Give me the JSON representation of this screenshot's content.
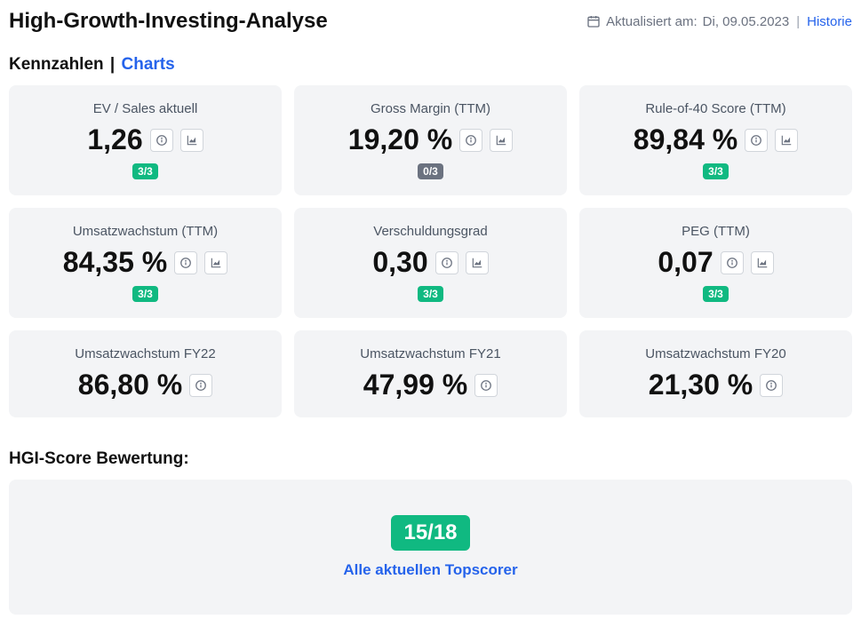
{
  "header": {
    "title": "High-Growth-Investing-Analyse",
    "updated_label": "Aktualisiert am:",
    "updated_date": "Di, 09.05.2023",
    "history_label": "Historie"
  },
  "tabs": {
    "metrics": "Kennzahlen",
    "charts": "Charts"
  },
  "metrics": [
    {
      "label": "EV / Sales aktuell",
      "value": "1,26",
      "score": "3/3",
      "score_color": "green",
      "has_chart": true
    },
    {
      "label": "Gross Margin (TTM)",
      "value": "19,20 %",
      "score": "0/3",
      "score_color": "gray",
      "has_chart": true
    },
    {
      "label": "Rule-of-40 Score (TTM)",
      "value": "89,84 %",
      "score": "3/3",
      "score_color": "green",
      "has_chart": true
    },
    {
      "label": "Umsatzwachstum (TTM)",
      "value": "84,35 %",
      "score": "3/3",
      "score_color": "green",
      "has_chart": true
    },
    {
      "label": "Verschuldungsgrad",
      "value": "0,30",
      "score": "3/3",
      "score_color": "green",
      "has_chart": true
    },
    {
      "label": "PEG (TTM)",
      "value": "0,07",
      "score": "3/3",
      "score_color": "green",
      "has_chart": true
    },
    {
      "label": "Umsatzwachstum FY22",
      "value": "86,80 %",
      "score": null,
      "score_color": null,
      "has_chart": false
    },
    {
      "label": "Umsatzwachstum FY21",
      "value": "47,99 %",
      "score": null,
      "score_color": null,
      "has_chart": false
    },
    {
      "label": "Umsatzwachstum FY20",
      "value": "21,30 %",
      "score": null,
      "score_color": null,
      "has_chart": false
    }
  ],
  "hgi": {
    "title": "HGI-Score Bewertung:",
    "score": "15/18",
    "topscorer_label": "Alle aktuellen Topscorer"
  },
  "colors": {
    "badge_green": "#10b981",
    "badge_gray": "#6b7280",
    "card_bg": "#f3f4f6",
    "link": "#2563eb",
    "text": "#111111",
    "muted": "#6b7280"
  }
}
